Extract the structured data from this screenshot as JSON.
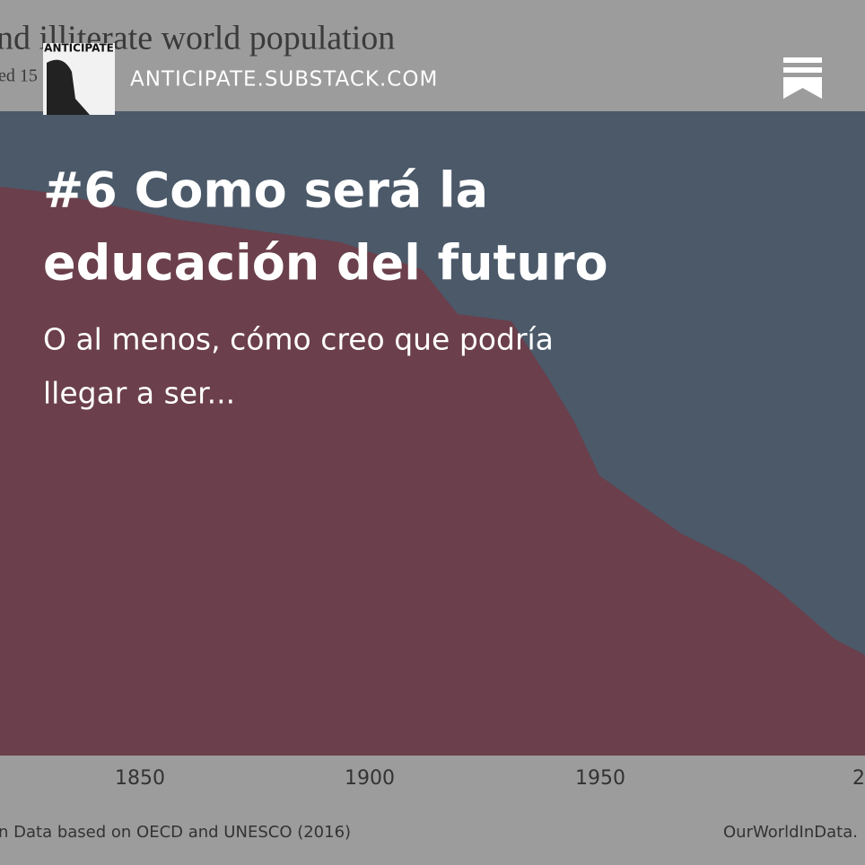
{
  "background": {
    "title": "nd illiterate world population",
    "subtitle": "ed 15",
    "axis_labels": [
      "1850",
      "1900",
      "1950",
      "2"
    ],
    "source": "n Data based on OECD and UNESCO (2016)",
    "credit": "OurWorldInData."
  },
  "header": {
    "logo_text": "ANTICIPATE",
    "domain": "ANTICIPATE.SUBSTACK.COM"
  },
  "post": {
    "title_lines": [
      "#6 Como será la",
      "educación del futuro"
    ],
    "subtitle_lines": [
      "O al menos, cómo creo que podría",
      "llegar a ser..."
    ]
  }
}
